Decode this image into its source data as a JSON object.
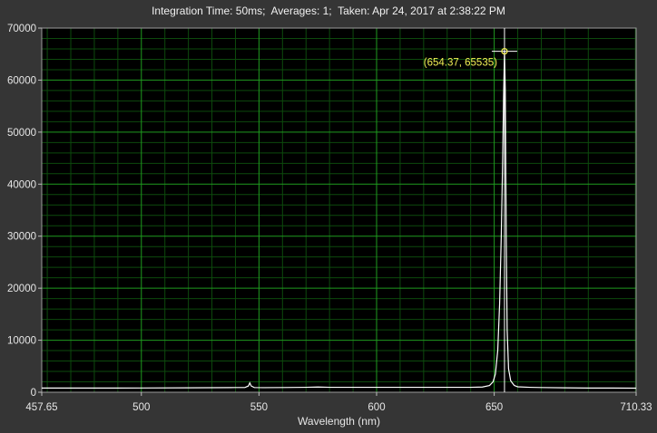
{
  "header": {
    "title": "Integration Time: 50ms;  Averages: 1;  Taken: Apr 24, 2017 at 2:38:22 PM"
  },
  "colors": {
    "background": "#353535",
    "plot_area": "#000000",
    "grid_major": "#1f9a1f",
    "grid_minor": "#0d4a0d",
    "trace": "#ffffff",
    "cursor": "#ffffff",
    "annotation": "#f2ef55"
  },
  "chart_data": {
    "type": "line",
    "title": "Integration Time: 50ms;  Averages: 1;  Taken: Apr 24, 2017 at 2:38:22 PM",
    "xlabel": "Wavelength (nm)",
    "ylabel": "",
    "xlim": [
      457.65,
      710.33
    ],
    "ylim": [
      0,
      70000
    ],
    "grid": true,
    "x_ticks": [
      {
        "value": 457.65,
        "label": "457.65"
      },
      {
        "value": 500,
        "label": "500"
      },
      {
        "value": 550,
        "label": "550"
      },
      {
        "value": 600,
        "label": "600"
      },
      {
        "value": 650,
        "label": "650"
      },
      {
        "value": 710.33,
        "label": "710.33"
      }
    ],
    "y_ticks": [
      {
        "value": 0,
        "label": "0"
      },
      {
        "value": 10000,
        "label": "10000"
      },
      {
        "value": 20000,
        "label": "20000"
      },
      {
        "value": 30000,
        "label": "30000"
      },
      {
        "value": 40000,
        "label": "40000"
      },
      {
        "value": 50000,
        "label": "50000"
      },
      {
        "value": 60000,
        "label": "60000"
      },
      {
        "value": 70000,
        "label": "70000"
      }
    ],
    "series": [
      {
        "x": [
          457.65,
          480,
          500,
          520,
          540,
          544,
          545.5,
          546.1,
          546.7,
          548,
          552,
          560,
          570,
          575,
          580,
          590,
          600,
          610,
          620,
          630,
          640,
          645,
          648,
          649.5,
          650.5,
          651.5,
          652.3,
          653,
          653.6,
          654,
          654.37,
          654.7,
          655.1,
          655.5,
          656.1,
          657,
          658.5,
          660,
          665,
          670,
          680,
          690,
          700,
          710.33
        ],
        "y": [
          800,
          800,
          820,
          850,
          900,
          900,
          1200,
          1800,
          1200,
          900,
          880,
          900,
          950,
          1000,
          950,
          950,
          950,
          950,
          950,
          950,
          950,
          1000,
          1300,
          2000,
          3500,
          8000,
          17000,
          30000,
          45000,
          57000,
          65535,
          58000,
          30000,
          12000,
          4500,
          2200,
          1300,
          1050,
          950,
          900,
          850,
          800,
          800,
          780
        ]
      }
    ],
    "cursor": {
      "x": 654.37,
      "y": 65535
    },
    "annotations": [
      {
        "text": "(654.37, 65535)",
        "x": 654.37,
        "y": 65535
      }
    ]
  }
}
